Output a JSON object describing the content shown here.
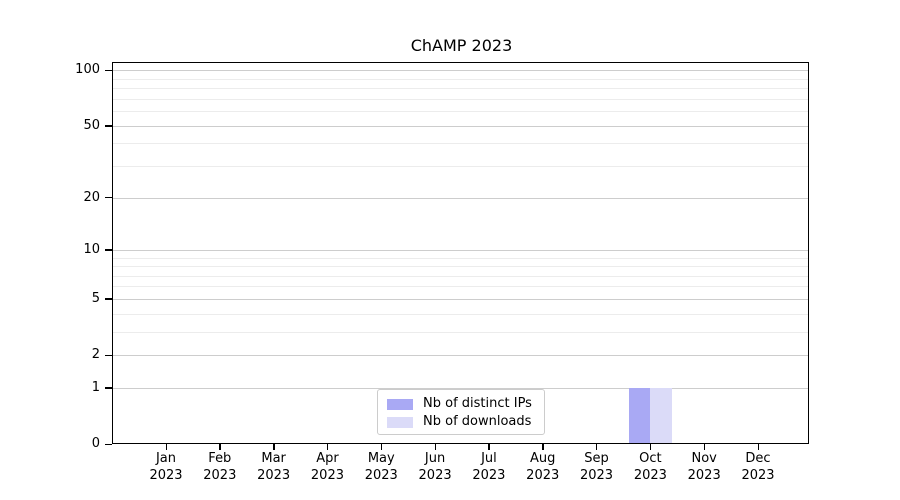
{
  "chart_data": {
    "type": "bar",
    "title": "ChAMP 2023",
    "categories": [
      "Jan",
      "Feb",
      "Mar",
      "Apr",
      "May",
      "Jun",
      "Jul",
      "Aug",
      "Sep",
      "Oct",
      "Nov",
      "Dec"
    ],
    "category_year": "2023",
    "series": [
      {
        "name": "Nb of distinct IPs",
        "color": "#a9a9f4",
        "values": [
          0,
          0,
          0,
          0,
          0,
          0,
          0,
          0,
          0,
          1,
          0,
          0
        ]
      },
      {
        "name": "Nb of downloads",
        "color": "#dbdbf8",
        "values": [
          0,
          0,
          0,
          0,
          0,
          0,
          0,
          0,
          0,
          1,
          0,
          0
        ]
      }
    ],
    "xlabel": "",
    "ylabel": "",
    "y_scale": "log1p",
    "y_ticks": [
      0,
      1,
      2,
      5,
      10,
      20,
      50,
      100
    ],
    "y_minor_gridlines": [
      3,
      4,
      6,
      7,
      8,
      9,
      30,
      40,
      60,
      70,
      80,
      90
    ],
    "ylim": [
      0,
      111
    ],
    "grid": "both",
    "legend_position": "lower center",
    "colors": {
      "grid_major": "#cdcdcd",
      "grid_minor": "#ececec",
      "spine": "#000000",
      "legend_border": "#cccccc",
      "text": "#000000"
    }
  }
}
